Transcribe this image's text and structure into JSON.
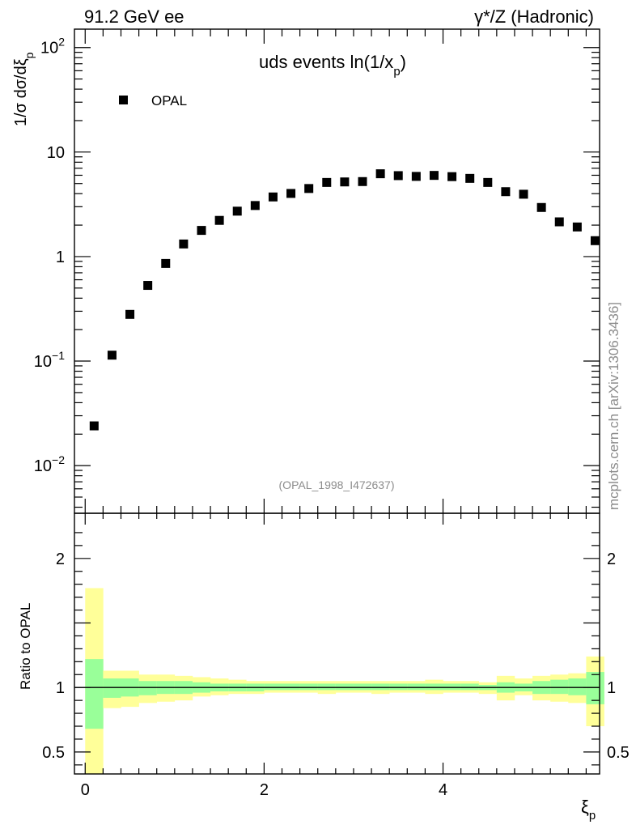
{
  "header": {
    "left": "91.2 GeV ee",
    "right": "γ*/Z (Hadronic)"
  },
  "side_text": "mcplots.cern.ch [arXiv:1306.3436]",
  "footer_ref": "(OPAL_1998_I472637)",
  "chart_data": [
    {
      "type": "scatter",
      "title": "uds events ln(1/x_p)",
      "title_main": "uds events ln(1/x",
      "title_sub": "p",
      "title_close": ")",
      "ylabel_main": "1/σ  dσ/dξ",
      "ylabel_sub": "p",
      "yscale": "log",
      "ylim": [
        0.0035,
        150
      ],
      "xlim": [
        -0.12,
        5.75
      ],
      "grid": false,
      "legend_position": "top-left",
      "ytick_labels": [
        {
          "value": 100,
          "base": "10",
          "exp": "2"
        },
        {
          "value": 10,
          "base": "10",
          "exp": ""
        },
        {
          "value": 1,
          "base": "1",
          "exp": ""
        },
        {
          "value": 0.1,
          "base": "10",
          "exp": "−1"
        },
        {
          "value": 0.01,
          "base": "10",
          "exp": "−2"
        }
      ],
      "series": [
        {
          "name": "OPAL",
          "marker": "square",
          "color": "#000000",
          "x": [
            0.1,
            0.3,
            0.5,
            0.7,
            0.9,
            1.1,
            1.3,
            1.5,
            1.7,
            1.9,
            2.1,
            2.3,
            2.5,
            2.7,
            2.9,
            3.1,
            3.3,
            3.5,
            3.7,
            3.9,
            4.1,
            4.3,
            4.5,
            4.7,
            4.9,
            5.1,
            5.3,
            5.5,
            5.7
          ],
          "y": [
            0.024,
            0.114,
            0.28,
            0.53,
            0.86,
            1.32,
            1.78,
            2.22,
            2.72,
            3.08,
            3.72,
            4.02,
            4.48,
            5.12,
            5.18,
            5.22,
            6.2,
            5.95,
            5.85,
            5.98,
            5.82,
            5.6,
            5.12,
            4.18,
            3.95,
            2.95,
            2.15,
            1.92,
            1.42
          ]
        }
      ]
    },
    {
      "type": "area",
      "ylabel": "Ratio to OPAL",
      "xlabel_main": "ξ",
      "xlabel_sub": "p",
      "ylim": [
        0.33,
        2.35
      ],
      "xlim": [
        -0.12,
        5.75
      ],
      "reference_line": 1,
      "grid": false,
      "xtick_labels": [
        {
          "value": 0,
          "label": "0"
        },
        {
          "value": 2,
          "label": "2"
        },
        {
          "value": 4,
          "label": "4"
        }
      ],
      "ytick_labels": [
        {
          "value": 2,
          "label": "2"
        },
        {
          "value": 1,
          "label": "1"
        },
        {
          "value": 0.5,
          "label": "0.5"
        }
      ],
      "band_colors": {
        "outer": "#ffff99",
        "inner": "#99ff99",
        "line": "#000000"
      },
      "bins": [
        0,
        0.2,
        0.4,
        0.6,
        0.8,
        1.0,
        1.2,
        1.4,
        1.6,
        1.8,
        2.0,
        2.2,
        2.4,
        2.6,
        2.8,
        3.0,
        3.2,
        3.4,
        3.6,
        3.8,
        4.0,
        4.2,
        4.4,
        4.6,
        4.8,
        5.0,
        5.2,
        5.4,
        5.6,
        5.8
      ],
      "outer_band": {
        "low": [
          0.0,
          0.84,
          0.85,
          0.88,
          0.89,
          0.9,
          0.93,
          0.94,
          0.95,
          0.95,
          0.96,
          0.96,
          0.96,
          0.95,
          0.96,
          0.96,
          0.95,
          0.96,
          0.96,
          0.95,
          0.96,
          0.96,
          0.95,
          0.9,
          0.94,
          0.9,
          0.89,
          0.88,
          0.7
        ],
        "high": [
          1.77,
          1.13,
          1.13,
          1.1,
          1.1,
          1.09,
          1.08,
          1.07,
          1.06,
          1.05,
          1.05,
          1.05,
          1.05,
          1.05,
          1.05,
          1.05,
          1.05,
          1.05,
          1.05,
          1.06,
          1.05,
          1.05,
          1.04,
          1.09,
          1.07,
          1.09,
          1.1,
          1.11,
          1.24
        ]
      },
      "inner_band": {
        "low": [
          0.68,
          0.92,
          0.93,
          0.94,
          0.95,
          0.95,
          0.96,
          0.97,
          0.97,
          0.97,
          0.98,
          0.98,
          0.98,
          0.98,
          0.98,
          0.98,
          0.98,
          0.98,
          0.98,
          0.98,
          0.98,
          0.98,
          0.98,
          0.96,
          0.97,
          0.95,
          0.95,
          0.94,
          0.87
        ],
        "high": [
          1.22,
          1.07,
          1.07,
          1.05,
          1.05,
          1.05,
          1.04,
          1.03,
          1.03,
          1.03,
          1.03,
          1.03,
          1.03,
          1.03,
          1.03,
          1.03,
          1.03,
          1.03,
          1.03,
          1.03,
          1.03,
          1.03,
          1.02,
          1.04,
          1.03,
          1.05,
          1.06,
          1.07,
          1.12
        ]
      }
    }
  ]
}
